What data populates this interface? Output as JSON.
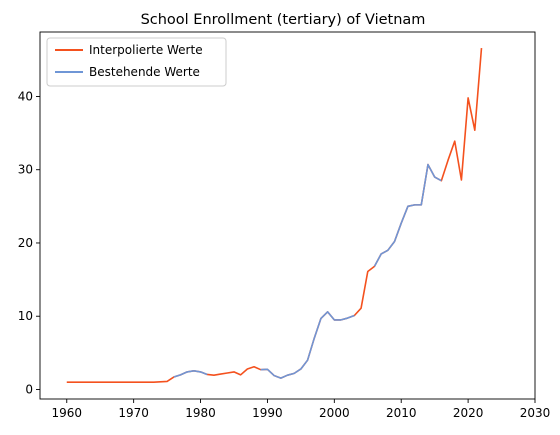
{
  "chart_data": {
    "type": "line",
    "title": "School Enrollment (tertiary) of Vietnam",
    "xlabel": "",
    "ylabel": "",
    "xlim": [
      1956,
      2030
    ],
    "ylim": [
      -1.3,
      48.8
    ],
    "xticks": [
      1960,
      1970,
      1980,
      1990,
      2000,
      2010,
      2020,
      2030
    ],
    "yticks": [
      0,
      10,
      20,
      30,
      40
    ],
    "grid": false,
    "legend_position": "top-left",
    "series": [
      {
        "name": "Interpolierte Werte",
        "color": "#f4511e",
        "points": [
          [
            1960,
            1.0
          ],
          [
            1961,
            1.0
          ],
          [
            1962,
            1.0
          ],
          [
            1963,
            1.0
          ],
          [
            1964,
            1.0
          ],
          [
            1965,
            1.0
          ],
          [
            1966,
            1.0
          ],
          [
            1967,
            1.0
          ],
          [
            1968,
            1.0
          ],
          [
            1969,
            1.0
          ],
          [
            1970,
            1.0
          ],
          [
            1971,
            1.0
          ],
          [
            1972,
            1.0
          ],
          [
            1973,
            1.0
          ],
          [
            1974,
            1.05
          ],
          [
            1975,
            1.1
          ],
          [
            1976,
            1.7
          ],
          [
            1977,
            2.0
          ],
          [
            1978,
            2.4
          ],
          [
            1979,
            2.55
          ],
          [
            1980,
            2.4
          ],
          [
            1981,
            2.05
          ],
          [
            1982,
            1.95
          ],
          [
            1983,
            2.1
          ],
          [
            1984,
            2.25
          ],
          [
            1985,
            2.4
          ],
          [
            1986,
            2.0
          ],
          [
            1987,
            2.8
          ],
          [
            1988,
            3.1
          ],
          [
            1989,
            2.7
          ],
          [
            1990,
            2.75
          ],
          [
            1991,
            1.9
          ],
          [
            1992,
            1.55
          ],
          [
            1993,
            1.95
          ],
          [
            1994,
            2.2
          ],
          [
            1995,
            2.8
          ],
          [
            1996,
            4.0
          ],
          [
            1997,
            7.0
          ],
          [
            1998,
            9.7
          ],
          [
            1999,
            10.6
          ],
          [
            2000,
            9.5
          ],
          [
            2001,
            9.5
          ],
          [
            2002,
            9.75
          ],
          [
            2003,
            10.1
          ],
          [
            2004,
            11.1
          ],
          [
            2005,
            16.1
          ],
          [
            2006,
            16.8
          ],
          [
            2007,
            18.5
          ],
          [
            2008,
            19.0
          ],
          [
            2009,
            20.2
          ],
          [
            2010,
            22.7
          ],
          [
            2011,
            25.0
          ],
          [
            2012,
            25.2
          ],
          [
            2013,
            25.2
          ],
          [
            2014,
            30.7
          ],
          [
            2015,
            29.0
          ],
          [
            2016,
            28.5
          ],
          [
            2017,
            31.3
          ],
          [
            2018,
            33.9
          ],
          [
            2019,
            28.6
          ],
          [
            2020,
            39.8
          ],
          [
            2021,
            35.4
          ],
          [
            2022,
            46.6
          ]
        ]
      },
      {
        "name": "Bestehende Werte",
        "color": "#6f96d6",
        "points": [
          [
            1976,
            1.7
          ],
          [
            1977,
            2.0
          ],
          [
            1978,
            2.4
          ],
          [
            1979,
            2.55
          ],
          [
            1980,
            2.4
          ],
          [
            1981,
            2.05
          ],
          [
            1989,
            2.7
          ],
          [
            1990,
            2.75
          ],
          [
            1991,
            1.9
          ],
          [
            1992,
            1.55
          ],
          [
            1993,
            1.95
          ],
          [
            1994,
            2.2
          ],
          [
            1995,
            2.8
          ],
          [
            1996,
            4.0
          ],
          [
            1997,
            7.0
          ],
          [
            1998,
            9.7
          ],
          [
            1999,
            10.6
          ],
          [
            2000,
            9.5
          ],
          [
            2001,
            9.5
          ],
          [
            2002,
            9.75
          ],
          [
            2003,
            10.1
          ],
          [
            2006,
            16.8
          ],
          [
            2007,
            18.5
          ],
          [
            2008,
            19.0
          ],
          [
            2009,
            20.2
          ],
          [
            2010,
            22.7
          ],
          [
            2011,
            25.0
          ],
          [
            2012,
            25.2
          ],
          [
            2013,
            25.2
          ],
          [
            2014,
            30.7
          ],
          [
            2015,
            29.0
          ],
          [
            2016,
            28.5
          ]
        ]
      }
    ]
  }
}
